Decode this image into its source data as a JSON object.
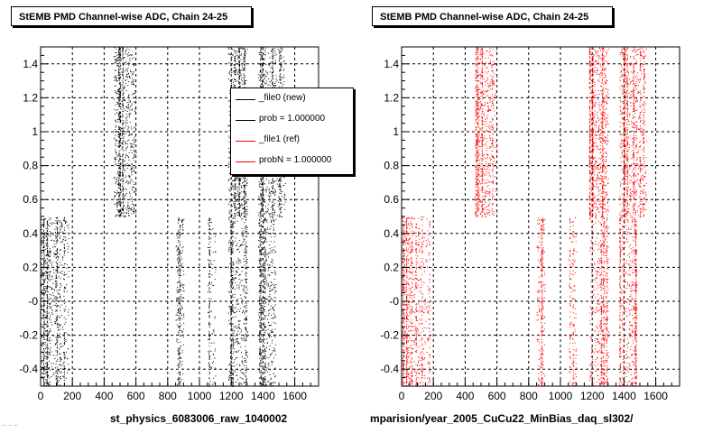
{
  "panels": [
    {
      "title": "StEMB PMD Channel-wise ADC, Chain 24-25",
      "footer": "st_physics_6083006_raw_1040002",
      "legend": [
        {
          "label": "_file0 (new)",
          "color": "#000000"
        },
        {
          "label": "prob = 1.000000",
          "color": "#000000"
        },
        {
          "label": "_file1 (ref)",
          "color": "#ff0000"
        },
        {
          "label": "probN = 1.000000",
          "color": "#ff0000"
        }
      ]
    },
    {
      "title": "StEMB PMD Channel-wise ADC, Chain 24-25",
      "footer": "mparision/year_2005_CuCu22_MinBias_daq_sl302/"
    }
  ],
  "footer_small": "...  ...  ...",
  "chart_data": [
    {
      "type": "scatter",
      "title": "StEMB PMD Channel-wise ADC, Chain 24-25",
      "xlim": [
        0,
        1750
      ],
      "ylim": [
        -0.5,
        1.5
      ],
      "xticks": [
        "0",
        "200",
        "400",
        "600",
        "800",
        "1000",
        "1200",
        "1400",
        "1600"
      ],
      "yticks": [
        "-0.4",
        "-0.2",
        "-0",
        "0.2",
        "0.4",
        "0.6",
        "0.8",
        "1",
        "1.2",
        "1.4"
      ],
      "grid": true,
      "legend_position": "top-right",
      "series": [
        {
          "name": "_file0 (new)",
          "color": "#000000",
          "bands": [
            {
              "x": [
                0,
                60
              ],
              "y": [
                -0.5,
                0.5
              ],
              "density": 0.9
            },
            {
              "x": [
                60,
                120
              ],
              "y": [
                -0.5,
                0.5
              ],
              "density": 0.45
            },
            {
              "x": [
                120,
                175
              ],
              "y": [
                -0.5,
                0.5
              ],
              "density": 0.35
            },
            {
              "x": [
                460,
                560
              ],
              "y": [
                0.5,
                1.5
              ],
              "density": 0.8
            },
            {
              "x": [
                560,
                600
              ],
              "y": [
                0.5,
                1.5
              ],
              "density": 0.35
            },
            {
              "x": [
                850,
                900
              ],
              "y": [
                -0.5,
                0.5
              ],
              "density": 0.6
            },
            {
              "x": [
                1050,
                1100
              ],
              "y": [
                -0.5,
                0.5
              ],
              "density": 0.35
            },
            {
              "x": [
                1180,
                1300
              ],
              "y": [
                0.5,
                1.5
              ],
              "density": 0.85
            },
            {
              "x": [
                1180,
                1300
              ],
              "y": [
                -0.5,
                0.5
              ],
              "density": 0.5
            },
            {
              "x": [
                1370,
                1480
              ],
              "y": [
                0.5,
                1.5
              ],
              "density": 0.7
            },
            {
              "x": [
                1370,
                1480
              ],
              "y": [
                -0.5,
                0.5
              ],
              "density": 0.6
            },
            {
              "x": [
                1480,
                1540
              ],
              "y": [
                0.5,
                1.5
              ],
              "density": 0.5
            }
          ]
        }
      ]
    },
    {
      "type": "scatter",
      "title": "StEMB PMD Channel-wise ADC, Chain 24-25",
      "xlim": [
        0,
        1750
      ],
      "ylim": [
        -0.5,
        1.5
      ],
      "xticks": [
        "0",
        "200",
        "400",
        "600",
        "800",
        "1000",
        "1200",
        "1400",
        "1600"
      ],
      "yticks": [
        "-0.4",
        "-0.2",
        "-0",
        "0.2",
        "0.4",
        "0.6",
        "0.8",
        "1",
        "1.2",
        "1.4"
      ],
      "grid": true,
      "series": [
        {
          "name": "_file1 (ref)",
          "color": "#ff0000",
          "bands": [
            {
              "x": [
                0,
                60
              ],
              "y": [
                -0.5,
                0.5
              ],
              "density": 0.9
            },
            {
              "x": [
                60,
                120
              ],
              "y": [
                -0.5,
                0.5
              ],
              "density": 0.45
            },
            {
              "x": [
                120,
                175
              ],
              "y": [
                -0.5,
                0.5
              ],
              "density": 0.35
            },
            {
              "x": [
                460,
                560
              ],
              "y": [
                0.5,
                1.5
              ],
              "density": 0.8
            },
            {
              "x": [
                560,
                600
              ],
              "y": [
                0.5,
                1.5
              ],
              "density": 0.35
            },
            {
              "x": [
                850,
                900
              ],
              "y": [
                -0.5,
                0.5
              ],
              "density": 0.6
            },
            {
              "x": [
                1050,
                1100
              ],
              "y": [
                -0.5,
                0.5
              ],
              "density": 0.35
            },
            {
              "x": [
                1180,
                1300
              ],
              "y": [
                0.5,
                1.5
              ],
              "density": 0.85
            },
            {
              "x": [
                1180,
                1300
              ],
              "y": [
                -0.5,
                0.5
              ],
              "density": 0.5
            },
            {
              "x": [
                1370,
                1480
              ],
              "y": [
                0.5,
                1.5
              ],
              "density": 0.7
            },
            {
              "x": [
                1370,
                1480
              ],
              "y": [
                -0.5,
                0.5
              ],
              "density": 0.6
            },
            {
              "x": [
                1480,
                1540
              ],
              "y": [
                0.5,
                1.5
              ],
              "density": 0.5
            }
          ]
        }
      ]
    }
  ]
}
